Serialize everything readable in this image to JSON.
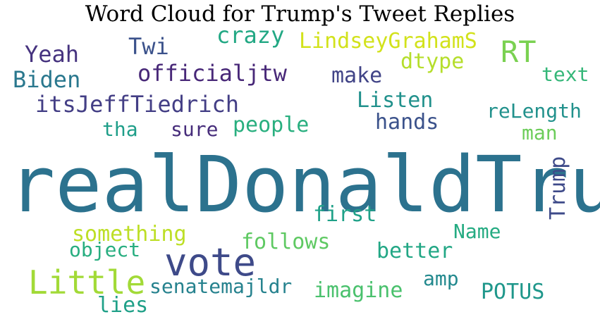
{
  "chart_data": {
    "type": "wordcloud",
    "title": "Word Cloud for Trump's Tweet Replies",
    "words": [
      {
        "text": "realDonaldTrump",
        "color": "#2c728e"
      },
      {
        "text": "vote",
        "color": "#3e4a89"
      },
      {
        "text": "Little",
        "color": "#a2da37"
      },
      {
        "text": "RT",
        "color": "#7ad151"
      },
      {
        "text": "officialjtw",
        "color": "#482878"
      },
      {
        "text": "itsJeffTiedrich",
        "color": "#433e85"
      },
      {
        "text": "LindseyGrahamS",
        "color": "#d2e21b"
      },
      {
        "text": "Yeah",
        "color": "#46337f"
      },
      {
        "text": "Biden",
        "color": "#2a788e"
      },
      {
        "text": "Twi",
        "color": "#3b528b"
      },
      {
        "text": "crazy",
        "color": "#22a884"
      },
      {
        "text": "dtype",
        "color": "#b5de2b"
      },
      {
        "text": "make",
        "color": "#414487"
      },
      {
        "text": "text",
        "color": "#35b779"
      },
      {
        "text": "Listen",
        "color": "#21918c"
      },
      {
        "text": "reLength",
        "color": "#21918c"
      },
      {
        "text": "hands",
        "color": "#3b528b"
      },
      {
        "text": "people",
        "color": "#29af7f"
      },
      {
        "text": "tha",
        "color": "#1f9e89"
      },
      {
        "text": "sure",
        "color": "#472d7b"
      },
      {
        "text": "man",
        "color": "#6ccd5a"
      },
      {
        "text": "first",
        "color": "#1fa188"
      },
      {
        "text": "something",
        "color": "#bddf26"
      },
      {
        "text": "Name",
        "color": "#25ab82"
      },
      {
        "text": "follows",
        "color": "#5ec962"
      },
      {
        "text": "object",
        "color": "#28ae80"
      },
      {
        "text": "better",
        "color": "#22a785"
      },
      {
        "text": "Trump",
        "color": "#3e4a89"
      },
      {
        "text": "amp",
        "color": "#23898e"
      },
      {
        "text": "senatemajldr",
        "color": "#26828e"
      },
      {
        "text": "imagine",
        "color": "#4ac16d"
      },
      {
        "text": "POTUS",
        "color": "#1f978b"
      },
      {
        "text": "lies",
        "color": "#1fa088"
      }
    ]
  }
}
